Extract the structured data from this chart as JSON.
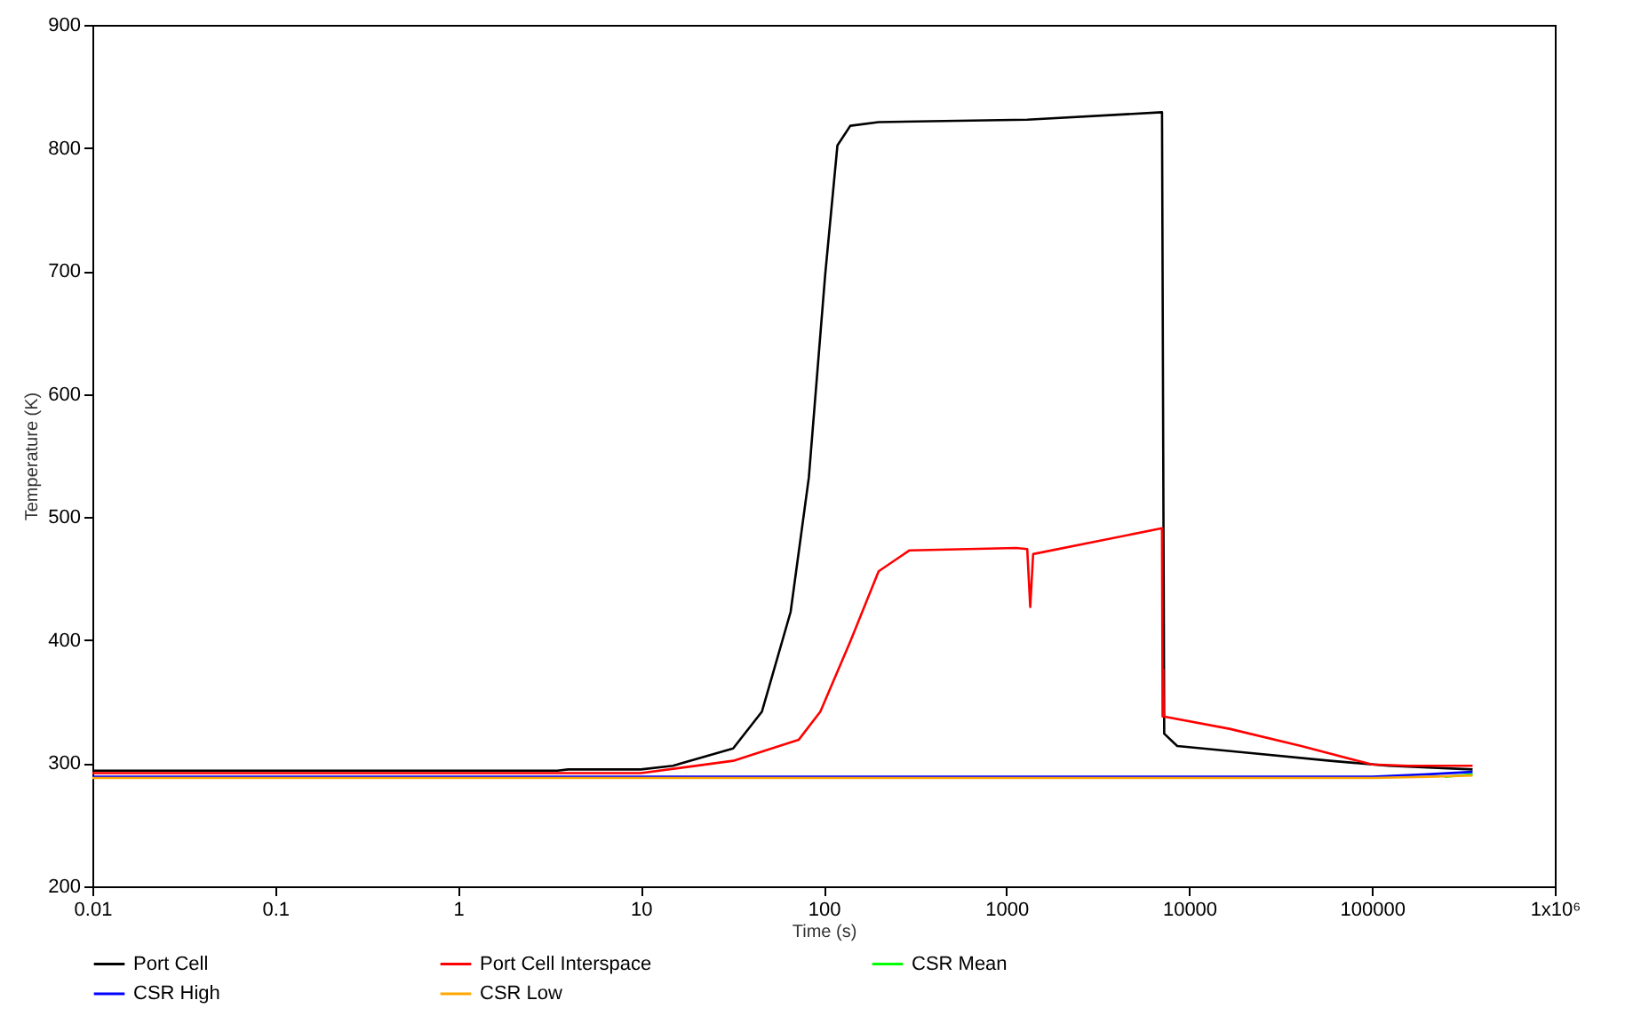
{
  "chart_data": {
    "type": "line",
    "xlabel": "Time (s)",
    "ylabel": "Temperature (K)",
    "log": "x",
    "grid": false,
    "legend": "bottom",
    "xlim": [
      0.01,
      1000000
    ],
    "xticks": [
      0.01,
      0.1,
      1,
      10,
      100,
      1000,
      10000,
      100000,
      {
        "value": 1000000,
        "label": "1x10⁶"
      }
    ],
    "ylim": [
      200,
      900
    ],
    "yticks": [
      200,
      300,
      400,
      500,
      600,
      700,
      800,
      900
    ],
    "series": [
      {
        "name": "Port Cell",
        "color": "#000000",
        "x": [
          0.01,
          3.5,
          4,
          10,
          15,
          32,
          46,
          66,
          83,
          102,
          119,
          140,
          200,
          1300,
          7100,
          7300,
          8600,
          19500,
          59000,
          123000,
          355000
        ],
        "values": [
          294,
          294,
          295,
          295,
          298,
          312,
          342,
          423,
          532,
          697,
          802,
          818,
          821,
          823,
          829,
          324,
          314,
          309,
          302,
          298,
          295
        ]
      },
      {
        "name": "Port Cell Interspace",
        "color": "#ff0000",
        "x": [
          0.01,
          10,
          32,
          52,
          73,
          96,
          140,
          200,
          295,
          1130,
          1300,
          1350,
          1400,
          7100,
          7150,
          7200,
          7250,
          16600,
          41000,
          100000,
          156000,
          355000
        ],
        "values": [
          292,
          292,
          302,
          312,
          319,
          342,
          399,
          456,
          473,
          475,
          474,
          427,
          470,
          491,
          338,
          376,
          338,
          328,
          314,
          299,
          298,
          298
        ]
      },
      {
        "name": "CSR Mean",
        "color": "#00ff00",
        "x": [
          250000,
          300000,
          355000
        ],
        "values": [
          289,
          290,
          291
        ]
      },
      {
        "name": "CSR High",
        "color": "#0000ff",
        "x": [
          0.01,
          100000,
          200000,
          355000
        ],
        "values": [
          289,
          289,
          291,
          293
        ]
      },
      {
        "name": "CSR Low",
        "color": "#ffa500",
        "x": [
          0.01,
          100000,
          200000,
          355000
        ],
        "values": [
          288,
          288,
          289,
          290
        ]
      }
    ]
  }
}
